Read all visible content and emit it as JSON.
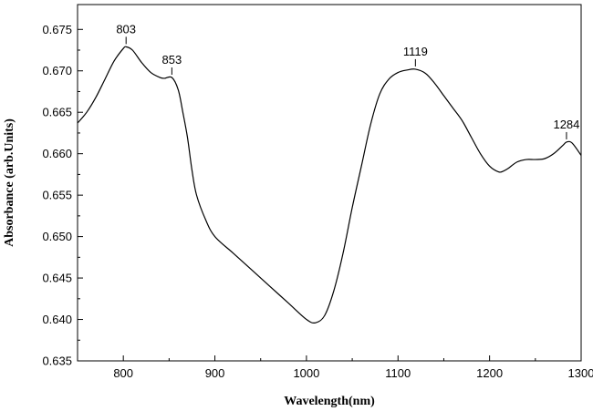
{
  "chart_data": {
    "type": "line",
    "title": "",
    "xlabel": "Wavelength(nm)",
    "ylabel": "Absorbance (arb.Units)",
    "xlim": [
      750,
      1300
    ],
    "ylim": [
      0.635,
      0.678
    ],
    "x_ticks": [
      800,
      900,
      1000,
      1100,
      1200,
      1300
    ],
    "x_tick_labels": [
      "800",
      "900",
      "1000",
      "1100",
      "1200",
      "1300"
    ],
    "y_ticks": [
      0.635,
      0.64,
      0.645,
      0.65,
      0.655,
      0.66,
      0.665,
      0.67,
      0.675
    ],
    "y_tick_labels": [
      "0.635",
      "0.640",
      "0.645",
      "0.650",
      "0.655",
      "0.660",
      "0.665",
      "0.670",
      "0.675"
    ],
    "grid": false,
    "legend": "none",
    "line_color": "#000000",
    "series": [
      {
        "x": [
          750,
          760,
          770,
          780,
          790,
          800,
          803,
          810,
          820,
          830,
          840,
          845,
          853,
          860,
          865,
          870,
          875,
          880,
          890,
          900,
          920,
          940,
          960,
          980,
          1000,
          1010,
          1020,
          1030,
          1040,
          1050,
          1060,
          1070,
          1080,
          1090,
          1100,
          1110,
          1119,
          1130,
          1140,
          1150,
          1160,
          1170,
          1180,
          1190,
          1200,
          1210,
          1215,
          1220,
          1230,
          1240,
          1250,
          1260,
          1270,
          1280,
          1284,
          1290,
          1300
        ],
        "y": [
          0.6637,
          0.665,
          0.6668,
          0.669,
          0.6712,
          0.6727,
          0.6729,
          0.6725,
          0.671,
          0.6698,
          0.6692,
          0.6691,
          0.6692,
          0.6677,
          0.665,
          0.662,
          0.658,
          0.655,
          0.652,
          0.65,
          0.648,
          0.646,
          0.644,
          0.642,
          0.64,
          0.6396,
          0.6405,
          0.6435,
          0.648,
          0.6535,
          0.6585,
          0.6635,
          0.6672,
          0.669,
          0.6698,
          0.6701,
          0.6702,
          0.6697,
          0.6685,
          0.667,
          0.6655,
          0.664,
          0.662,
          0.66,
          0.6585,
          0.6578,
          0.6579,
          0.6582,
          0.659,
          0.6593,
          0.6593,
          0.6594,
          0.66,
          0.661,
          0.6614,
          0.6613,
          0.6598
        ]
      }
    ],
    "annotations": [
      {
        "label": "803",
        "x": 803,
        "y": 0.6729
      },
      {
        "label": "853",
        "x": 853,
        "y": 0.6692
      },
      {
        "label": "1119",
        "x": 1119,
        "y": 0.6702
      },
      {
        "label": "1284",
        "x": 1284,
        "y": 0.6614
      }
    ]
  }
}
